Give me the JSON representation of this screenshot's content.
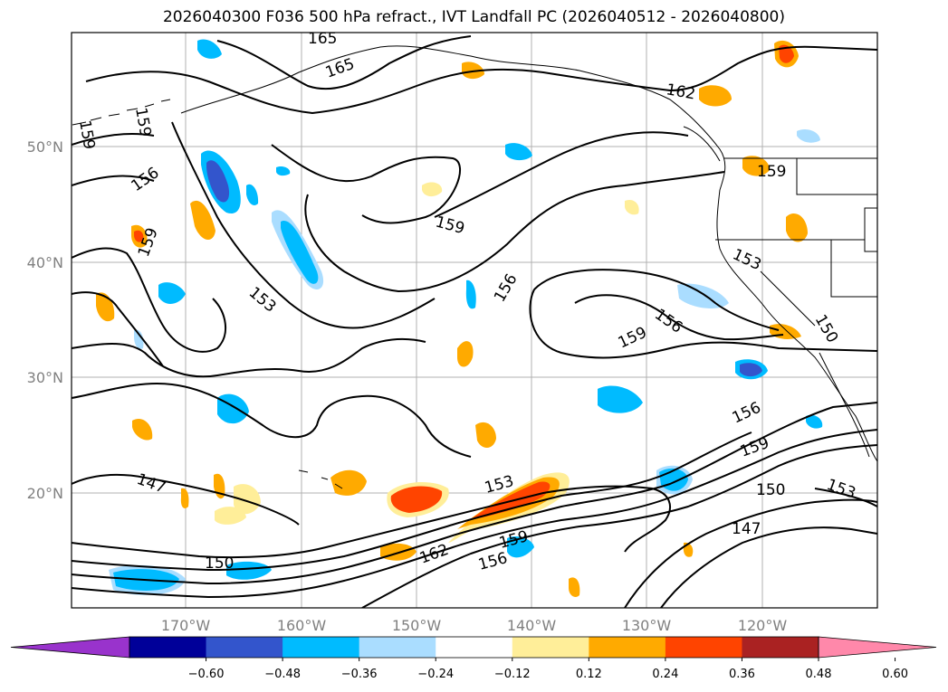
{
  "title": "2026040300 F036 500 hPa refract., IVT Landfall PC (2026040512 - 2026040800)",
  "lon_labels": [
    "170°W",
    "160°W",
    "150°W",
    "140°W",
    "130°W",
    "120°W"
  ],
  "lat_labels": [
    "50°N",
    "40°N",
    "30°N",
    "20°N"
  ],
  "colorbar": {
    "colors": [
      "#9933cc",
      "#000099",
      "#3355cc",
      "#00bbff",
      "#aaddff",
      "#ffffff",
      "#ffee99",
      "#ffaa00",
      "#ff4400",
      "#aa2222",
      "#ff88aa"
    ],
    "tick_labels": [
      "−0.60",
      "−0.48",
      "−0.36",
      "−0.24",
      "−0.12",
      "0.12",
      "0.24",
      "0.36",
      "0.48",
      "0.60"
    ]
  },
  "contour_labels": [
    "165",
    "165",
    "162",
    "159",
    "159",
    "159",
    "159",
    "156",
    "156",
    "156",
    "153",
    "153",
    "159",
    "150",
    "156",
    "159",
    "153",
    "150",
    "147",
    "147",
    "153",
    "159",
    "156",
    "162",
    "150",
    "159"
  ]
}
